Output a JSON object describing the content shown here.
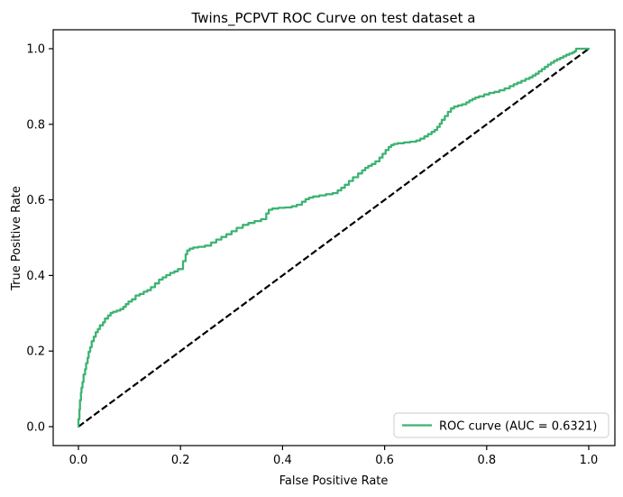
{
  "figure": {
    "background": "#ffffff"
  },
  "chart_data": {
    "type": "line",
    "title": "Twins_PCPVT ROC Curve on test dataset a",
    "xlabel": "False Positive Rate",
    "ylabel": "True Positive Rate",
    "xlim": [
      -0.05,
      1.05
    ],
    "ylim": [
      -0.05,
      1.05
    ],
    "x_ticks": [
      0.0,
      0.2,
      0.4,
      0.6,
      0.8,
      1.0
    ],
    "y_ticks": [
      0.0,
      0.2,
      0.4,
      0.6,
      0.8,
      1.0
    ],
    "grid": false,
    "auc": 0.6321,
    "legend": {
      "position": "lower right",
      "entries": [
        {
          "label": "ROC curve (AUC = 0.6321)",
          "color": "#3cb371",
          "style": "solid"
        }
      ]
    },
    "series": [
      {
        "name": "ROC curve",
        "color": "#3cb371",
        "style": "solid",
        "step": "vh",
        "points": [
          [
            0.0,
            0.0
          ],
          [
            0.002,
            0.02
          ],
          [
            0.003,
            0.045
          ],
          [
            0.005,
            0.07
          ],
          [
            0.006,
            0.09
          ],
          [
            0.008,
            0.103
          ],
          [
            0.01,
            0.118
          ],
          [
            0.013,
            0.138
          ],
          [
            0.015,
            0.152
          ],
          [
            0.018,
            0.168
          ],
          [
            0.02,
            0.182
          ],
          [
            0.023,
            0.198
          ],
          [
            0.026,
            0.21
          ],
          [
            0.03,
            0.226
          ],
          [
            0.034,
            0.238
          ],
          [
            0.038,
            0.25
          ],
          [
            0.042,
            0.258
          ],
          [
            0.048,
            0.268
          ],
          [
            0.052,
            0.276
          ],
          [
            0.058,
            0.286
          ],
          [
            0.063,
            0.294
          ],
          [
            0.068,
            0.301
          ],
          [
            0.075,
            0.304
          ],
          [
            0.082,
            0.307
          ],
          [
            0.088,
            0.311
          ],
          [
            0.093,
            0.317
          ],
          [
            0.098,
            0.324
          ],
          [
            0.105,
            0.331
          ],
          [
            0.112,
            0.337
          ],
          [
            0.12,
            0.347
          ],
          [
            0.128,
            0.351
          ],
          [
            0.135,
            0.357
          ],
          [
            0.142,
            0.361
          ],
          [
            0.15,
            0.369
          ],
          [
            0.158,
            0.379
          ],
          [
            0.165,
            0.389
          ],
          [
            0.172,
            0.395
          ],
          [
            0.18,
            0.401
          ],
          [
            0.188,
            0.407
          ],
          [
            0.195,
            0.411
          ],
          [
            0.205,
            0.417
          ],
          [
            0.21,
            0.438
          ],
          [
            0.213,
            0.456
          ],
          [
            0.218,
            0.466
          ],
          [
            0.225,
            0.471
          ],
          [
            0.235,
            0.474
          ],
          [
            0.248,
            0.476
          ],
          [
            0.26,
            0.479
          ],
          [
            0.27,
            0.487
          ],
          [
            0.28,
            0.495
          ],
          [
            0.29,
            0.502
          ],
          [
            0.3,
            0.509
          ],
          [
            0.31,
            0.517
          ],
          [
            0.322,
            0.526
          ],
          [
            0.333,
            0.534
          ],
          [
            0.345,
            0.539
          ],
          [
            0.358,
            0.544
          ],
          [
            0.368,
            0.549
          ],
          [
            0.373,
            0.564
          ],
          [
            0.38,
            0.574
          ],
          [
            0.392,
            0.577
          ],
          [
            0.405,
            0.579
          ],
          [
            0.418,
            0.58
          ],
          [
            0.428,
            0.583
          ],
          [
            0.438,
            0.587
          ],
          [
            0.445,
            0.595
          ],
          [
            0.452,
            0.602
          ],
          [
            0.46,
            0.606
          ],
          [
            0.472,
            0.609
          ],
          [
            0.485,
            0.612
          ],
          [
            0.498,
            0.615
          ],
          [
            0.508,
            0.618
          ],
          [
            0.515,
            0.625
          ],
          [
            0.522,
            0.632
          ],
          [
            0.53,
            0.64
          ],
          [
            0.538,
            0.65
          ],
          [
            0.548,
            0.66
          ],
          [
            0.556,
            0.67
          ],
          [
            0.562,
            0.678
          ],
          [
            0.568,
            0.685
          ],
          [
            0.575,
            0.69
          ],
          [
            0.582,
            0.695
          ],
          [
            0.59,
            0.702
          ],
          [
            0.596,
            0.712
          ],
          [
            0.602,
            0.722
          ],
          [
            0.608,
            0.732
          ],
          [
            0.613,
            0.74
          ],
          [
            0.618,
            0.745
          ],
          [
            0.625,
            0.748
          ],
          [
            0.638,
            0.75
          ],
          [
            0.65,
            0.752
          ],
          [
            0.662,
            0.754
          ],
          [
            0.67,
            0.757
          ],
          [
            0.678,
            0.762
          ],
          [
            0.685,
            0.768
          ],
          [
            0.692,
            0.774
          ],
          [
            0.698,
            0.78
          ],
          [
            0.703,
            0.785
          ],
          [
            0.708,
            0.793
          ],
          [
            0.712,
            0.802
          ],
          [
            0.718,
            0.812
          ],
          [
            0.724,
            0.822
          ],
          [
            0.73,
            0.833
          ],
          [
            0.736,
            0.842
          ],
          [
            0.744,
            0.847
          ],
          [
            0.752,
            0.85
          ],
          [
            0.76,
            0.853
          ],
          [
            0.766,
            0.858
          ],
          [
            0.772,
            0.863
          ],
          [
            0.778,
            0.867
          ],
          [
            0.785,
            0.871
          ],
          [
            0.795,
            0.874
          ],
          [
            0.805,
            0.879
          ],
          [
            0.815,
            0.883
          ],
          [
            0.825,
            0.886
          ],
          [
            0.835,
            0.89
          ],
          [
            0.845,
            0.895
          ],
          [
            0.853,
            0.901
          ],
          [
            0.86,
            0.906
          ],
          [
            0.868,
            0.91
          ],
          [
            0.876,
            0.915
          ],
          [
            0.884,
            0.92
          ],
          [
            0.89,
            0.924
          ],
          [
            0.896,
            0.929
          ],
          [
            0.902,
            0.934
          ],
          [
            0.908,
            0.94
          ],
          [
            0.914,
            0.946
          ],
          [
            0.92,
            0.952
          ],
          [
            0.926,
            0.958
          ],
          [
            0.932,
            0.963
          ],
          [
            0.938,
            0.968
          ],
          [
            0.944,
            0.972
          ],
          [
            0.95,
            0.976
          ],
          [
            0.956,
            0.98
          ],
          [
            0.962,
            0.984
          ],
          [
            0.968,
            0.987
          ],
          [
            0.972,
            0.99
          ],
          [
            0.975,
            0.993
          ],
          [
            0.977,
            1.0
          ],
          [
            1.0,
            1.0
          ]
        ]
      },
      {
        "name": "chance diagonal",
        "color": "#000000",
        "style": "dashed",
        "points": [
          [
            0.0,
            0.0
          ],
          [
            1.0,
            1.0
          ]
        ]
      }
    ]
  }
}
